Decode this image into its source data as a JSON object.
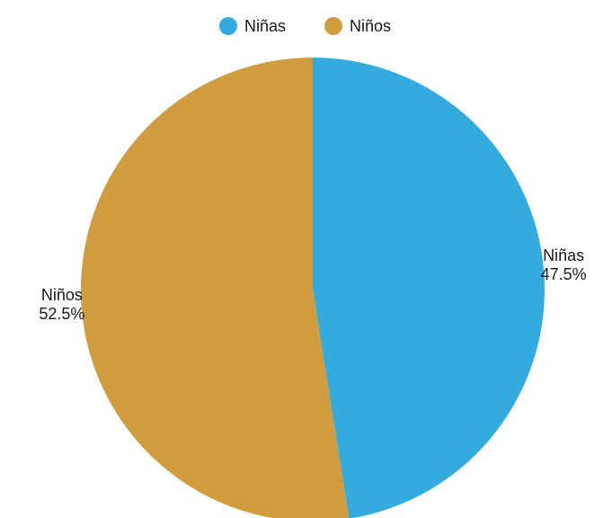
{
  "chart_data": {
    "type": "pie",
    "title": "",
    "categories": [
      "Niñas",
      "Niños"
    ],
    "values": [
      47.5,
      52.5
    ],
    "value_labels": [
      "47.5%",
      "52.5%"
    ],
    "colors": [
      "#33abdf",
      "#d09c3e"
    ],
    "legend_position": "top-center",
    "start_angle": "12 o'clock",
    "direction": "clockwise"
  }
}
